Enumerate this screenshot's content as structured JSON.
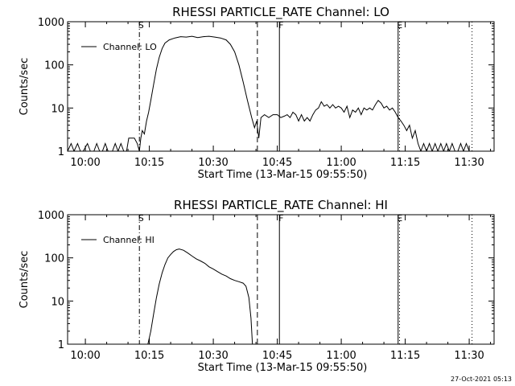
{
  "footer": {
    "stamp": "27-Oct-2021 05:13"
  },
  "chart_data": [
    {
      "type": "line",
      "title": "RHESSI PARTICLE_RATE Channel: LO",
      "xlabel": "Start Time (13-Mar-15 09:55:50)",
      "ylabel": "Counts/sec",
      "yscale": "log",
      "ylim": [
        1,
        1000
      ],
      "xlim": [
        "09:55:50",
        "11:35:50"
      ],
      "x_ticks": [
        "10:00",
        "10:15",
        "10:30",
        "10:45",
        "11:00",
        "11:15",
        "11:30"
      ],
      "y_ticks": [
        "1",
        "10",
        "100",
        "1000"
      ],
      "legend": {
        "position": "top-left",
        "label": "Channel: LO"
      },
      "markers": [
        {
          "label": "S",
          "time": "10:12:40",
          "style": "dash-dot"
        },
        {
          "label": "",
          "time": "10:40:20",
          "style": "dashed"
        },
        {
          "label": "F",
          "time": "10:45:30",
          "style": "solid"
        },
        {
          "label": "E",
          "time": "11:13:20",
          "style": "solid"
        },
        {
          "label": "",
          "time": "11:13:40",
          "style": "dotted"
        },
        {
          "label": "",
          "time": "11:30:40",
          "style": "dotted"
        }
      ],
      "series": [
        {
          "name": "Channel: LO",
          "points": [
            [
              "09:55:50",
              1
            ],
            [
              "09:56:40",
              1.5
            ],
            [
              "09:57:20",
              1
            ],
            [
              "09:58:10",
              1.5
            ],
            [
              "09:58:50",
              1
            ],
            [
              "09:59:30",
              1
            ],
            [
              "10:00:30",
              1.5
            ],
            [
              "10:01:10",
              1
            ],
            [
              "10:02:00",
              1
            ],
            [
              "10:02:40",
              1.5
            ],
            [
              "10:03:20",
              1
            ],
            [
              "10:04:00",
              1
            ],
            [
              "10:04:40",
              1.5
            ],
            [
              "10:05:20",
              1
            ],
            [
              "10:06:20",
              1
            ],
            [
              "10:07:00",
              1.5
            ],
            [
              "10:07:40",
              1
            ],
            [
              "10:08:20",
              1.5
            ],
            [
              "10:09:00",
              1
            ],
            [
              "10:09:40",
              1
            ],
            [
              "10:10:10",
              2
            ],
            [
              "10:10:50",
              2
            ],
            [
              "10:11:30",
              2
            ],
            [
              "10:12:10",
              1.5
            ],
            [
              "10:12:40",
              1
            ],
            [
              "10:13:00",
              2
            ],
            [
              "10:13:20",
              3
            ],
            [
              "10:13:50",
              2.5
            ],
            [
              "10:14:20",
              5
            ],
            [
              "10:14:50",
              8
            ],
            [
              "10:15:20",
              15
            ],
            [
              "10:16:00",
              35
            ],
            [
              "10:16:40",
              80
            ],
            [
              "10:17:20",
              150
            ],
            [
              "10:18:00",
              240
            ],
            [
              "10:18:40",
              320
            ],
            [
              "10:19:40",
              380
            ],
            [
              "10:21:00",
              420
            ],
            [
              "10:22:20",
              450
            ],
            [
              "10:23:40",
              440
            ],
            [
              "10:25:00",
              460
            ],
            [
              "10:26:20",
              430
            ],
            [
              "10:27:40",
              450
            ],
            [
              "10:29:00",
              460
            ],
            [
              "10:30:20",
              440
            ],
            [
              "10:31:40",
              420
            ],
            [
              "10:33:00",
              380
            ],
            [
              "10:34:00",
              300
            ],
            [
              "10:35:00",
              200
            ],
            [
              "10:36:00",
              100
            ],
            [
              "10:37:00",
              40
            ],
            [
              "10:38:00",
              15
            ],
            [
              "10:39:00",
              6
            ],
            [
              "10:39:40",
              3.5
            ],
            [
              "10:40:10",
              5
            ],
            [
              "10:40:40",
              2
            ],
            [
              "10:41:10",
              6
            ],
            [
              "10:42:00",
              7
            ],
            [
              "10:43:00",
              6
            ],
            [
              "10:44:00",
              7
            ],
            [
              "10:45:00",
              7
            ],
            [
              "10:45:50",
              6
            ],
            [
              "10:46:40",
              6.5
            ],
            [
              "10:47:20",
              7
            ],
            [
              "10:48:00",
              6
            ],
            [
              "10:48:40",
              8
            ],
            [
              "10:49:20",
              7
            ],
            [
              "10:50:00",
              5
            ],
            [
              "10:50:40",
              7
            ],
            [
              "10:51:20",
              5
            ],
            [
              "10:52:00",
              6
            ],
            [
              "10:52:40",
              5
            ],
            [
              "10:53:20",
              7
            ],
            [
              "10:54:00",
              9
            ],
            [
              "10:54:40",
              10
            ],
            [
              "10:55:20",
              14
            ],
            [
              "10:56:00",
              11
            ],
            [
              "10:56:40",
              12
            ],
            [
              "10:57:20",
              10
            ],
            [
              "10:58:00",
              12
            ],
            [
              "10:58:40",
              10
            ],
            [
              "10:59:20",
              11
            ],
            [
              "11:00:00",
              10
            ],
            [
              "11:00:40",
              8
            ],
            [
              "11:01:20",
              11
            ],
            [
              "11:02:00",
              6
            ],
            [
              "11:02:40",
              9
            ],
            [
              "11:03:20",
              8
            ],
            [
              "11:04:00",
              10
            ],
            [
              "11:04:40",
              7
            ],
            [
              "11:05:20",
              10
            ],
            [
              "11:06:00",
              9
            ],
            [
              "11:06:40",
              10
            ],
            [
              "11:07:20",
              9
            ],
            [
              "11:08:00",
              12
            ],
            [
              "11:08:40",
              15
            ],
            [
              "11:09:20",
              13
            ],
            [
              "11:10:00",
              10
            ],
            [
              "11:10:40",
              11
            ],
            [
              "11:11:20",
              9
            ],
            [
              "11:12:00",
              10
            ],
            [
              "11:12:40",
              8
            ],
            [
              "11:13:20",
              6
            ],
            [
              "11:14:00",
              5
            ],
            [
              "11:14:40",
              4
            ],
            [
              "11:15:20",
              3
            ],
            [
              "11:16:00",
              4
            ],
            [
              "11:16:40",
              2
            ],
            [
              "11:17:20",
              3
            ],
            [
              "11:18:00",
              1.5
            ],
            [
              "11:18:40",
              1
            ],
            [
              "11:19:20",
              1.5
            ],
            [
              "11:20:00",
              1
            ],
            [
              "11:20:40",
              1.5
            ],
            [
              "11:21:20",
              1
            ],
            [
              "11:22:00",
              1.5
            ],
            [
              "11:22:40",
              1
            ],
            [
              "11:23:20",
              1.5
            ],
            [
              "11:24:00",
              1
            ],
            [
              "11:24:40",
              1.5
            ],
            [
              "11:25:20",
              1
            ],
            [
              "11:26:00",
              1.5
            ],
            [
              "11:26:40",
              1
            ],
            [
              "11:27:20",
              1
            ],
            [
              "11:28:00",
              1.5
            ],
            [
              "11:28:40",
              1
            ],
            [
              "11:29:20",
              1.5
            ],
            [
              "11:30:00",
              1
            ]
          ]
        }
      ]
    },
    {
      "type": "line",
      "title": "RHESSI PARTICLE_RATE Channel: HI",
      "xlabel": "Start Time (13-Mar-15 09:55:50)",
      "ylabel": "Counts/sec",
      "yscale": "log",
      "ylim": [
        1,
        1000
      ],
      "xlim": [
        "09:55:50",
        "11:35:50"
      ],
      "x_ticks": [
        "10:00",
        "10:15",
        "10:30",
        "10:45",
        "11:00",
        "11:15",
        "11:30"
      ],
      "y_ticks": [
        "1",
        "10",
        "100",
        "1000"
      ],
      "legend": {
        "position": "top-left",
        "label": "Channel: HI"
      },
      "markers": [
        {
          "label": "S",
          "time": "10:12:40",
          "style": "dash-dot"
        },
        {
          "label": "",
          "time": "10:40:20",
          "style": "dashed"
        },
        {
          "label": "F",
          "time": "10:45:30",
          "style": "solid"
        },
        {
          "label": "E",
          "time": "11:13:20",
          "style": "solid"
        },
        {
          "label": "",
          "time": "11:13:40",
          "style": "dotted"
        },
        {
          "label": "",
          "time": "11:30:40",
          "style": "dotted"
        }
      ],
      "series": [
        {
          "name": "Channel: HI",
          "points": [
            [
              "10:14:40",
              1
            ],
            [
              "10:15:20",
              2
            ],
            [
              "10:16:00",
              5
            ],
            [
              "10:16:40",
              12
            ],
            [
              "10:17:20",
              25
            ],
            [
              "10:18:00",
              45
            ],
            [
              "10:18:40",
              70
            ],
            [
              "10:19:20",
              100
            ],
            [
              "10:20:00",
              120
            ],
            [
              "10:20:40",
              140
            ],
            [
              "10:21:20",
              155
            ],
            [
              "10:22:00",
              160
            ],
            [
              "10:23:00",
              150
            ],
            [
              "10:24:00",
              130
            ],
            [
              "10:25:00",
              110
            ],
            [
              "10:26:00",
              95
            ],
            [
              "10:27:00",
              85
            ],
            [
              "10:28:00",
              75
            ],
            [
              "10:29:00",
              62
            ],
            [
              "10:30:00",
              55
            ],
            [
              "10:31:00",
              48
            ],
            [
              "10:32:00",
              42
            ],
            [
              "10:33:00",
              38
            ],
            [
              "10:34:00",
              33
            ],
            [
              "10:35:00",
              30
            ],
            [
              "10:36:00",
              28
            ],
            [
              "10:37:00",
              26
            ],
            [
              "10:37:40",
              22
            ],
            [
              "10:38:20",
              12
            ],
            [
              "10:38:50",
              4
            ],
            [
              "10:39:10",
              1
            ]
          ]
        }
      ]
    }
  ]
}
